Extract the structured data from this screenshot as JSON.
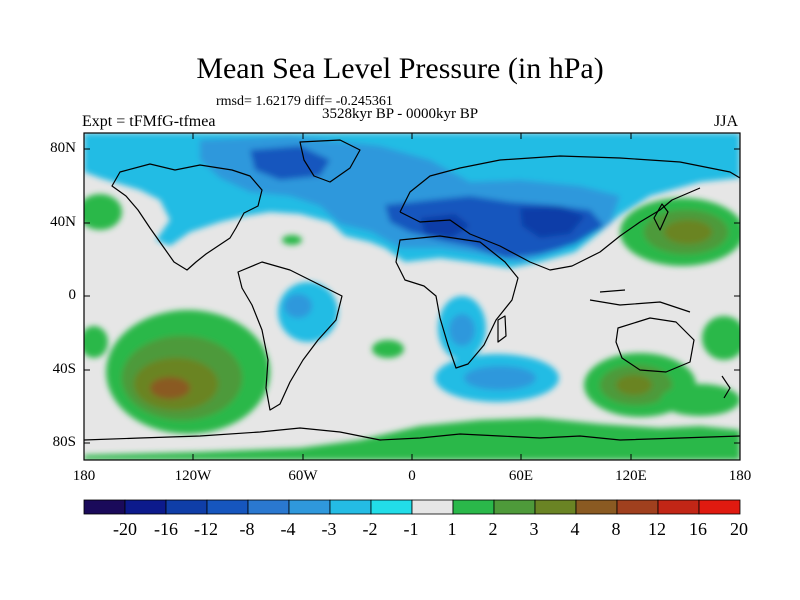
{
  "title": "Mean Sea Level Pressure (in hPa)",
  "stats": "rmsd= 1.62179 diff= -0.245361",
  "period": "3528kyr BP - 0000kyr BP",
  "expt": "Expt = tFMfG-tfmea",
  "season": "JJA",
  "map": {
    "lat_ticks": [
      "80N",
      "40N",
      "0",
      "40S",
      "80S"
    ],
    "lon_ticks": [
      "180",
      "120W",
      "60W",
      "0",
      "60E",
      "120E",
      "180"
    ]
  },
  "colorbar": {
    "labels": [
      "-20",
      "-16",
      "-12",
      "-8",
      "-4",
      "-3",
      "-2",
      "-1",
      "1",
      "2",
      "3",
      "4",
      "8",
      "12",
      "16",
      "20"
    ],
    "colors": [
      "#1a0a5a",
      "#0c1a8c",
      "#0f3ea8",
      "#1656be",
      "#2a78d0",
      "#2f98dc",
      "#24bce4",
      "#22dde8",
      "#e6e6e6",
      "#2ab84a",
      "#4e9a3a",
      "#6a8424",
      "#8a5a22",
      "#a0401e",
      "#c22616",
      "#e01a10"
    ]
  }
}
